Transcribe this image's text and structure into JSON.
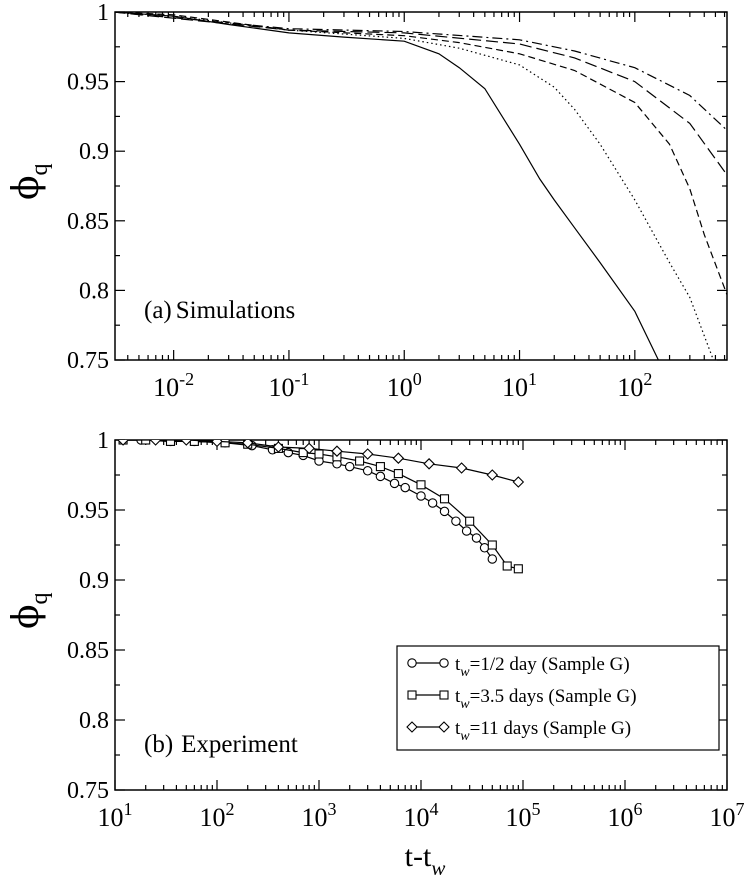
{
  "chart_data": [
    {
      "type": "line",
      "panel_label": "(a)",
      "title": "Simulations",
      "xscale": "log",
      "xlim": [
        0.0031,
        630
      ],
      "ylim": [
        0.75,
        1.0
      ],
      "ylabel_main": "ϕ",
      "ylabel_sub": "q",
      "y_ticks": [
        "0.75",
        "0.8",
        "0.85",
        "0.9",
        "0.95",
        "1"
      ],
      "x_ticks": [
        {
          "base": "10",
          "exp": "-2"
        },
        {
          "base": "10",
          "exp": "-1"
        },
        {
          "base": "10",
          "exp": "0"
        },
        {
          "base": "10",
          "exp": "1"
        },
        {
          "base": "10",
          "exp": "2"
        }
      ],
      "series": [
        {
          "name": "solid",
          "dash": "solid",
          "x": [
            0.003,
            0.01,
            0.03,
            0.1,
            0.3,
            1,
            2,
            3,
            5,
            10,
            15,
            20,
            30,
            50,
            100,
            160
          ],
          "y": [
            1.0,
            0.997,
            0.991,
            0.985,
            0.982,
            0.979,
            0.97,
            0.96,
            0.945,
            0.905,
            0.88,
            0.865,
            0.845,
            0.82,
            0.785,
            0.75
          ]
        },
        {
          "name": "dotted",
          "dash": "dotted",
          "x": [
            0.003,
            0.01,
            0.1,
            1,
            3,
            10,
            20,
            30,
            50,
            100,
            200,
            300,
            480
          ],
          "y": [
            1.0,
            0.997,
            0.987,
            0.981,
            0.974,
            0.962,
            0.946,
            0.93,
            0.905,
            0.865,
            0.82,
            0.795,
            0.75
          ]
        },
        {
          "name": "dashed",
          "dash": "dashed",
          "x": [
            0.003,
            0.01,
            0.1,
            1,
            3,
            10,
            30,
            100,
            200,
            300,
            400,
            630
          ],
          "y": [
            1.0,
            0.998,
            0.987,
            0.983,
            0.978,
            0.97,
            0.958,
            0.935,
            0.905,
            0.873,
            0.84,
            0.797
          ]
        },
        {
          "name": "long-dash",
          "dash": "longdash",
          "x": [
            0.003,
            0.1,
            1,
            10,
            30,
            100,
            300,
            630
          ],
          "y": [
            1.0,
            0.987,
            0.985,
            0.977,
            0.967,
            0.95,
            0.92,
            0.883
          ]
        },
        {
          "name": "dash-dot",
          "dash": "dashdot",
          "x": [
            0.003,
            0.1,
            1,
            10,
            30,
            100,
            300,
            630
          ],
          "y": [
            1.0,
            0.988,
            0.986,
            0.98,
            0.972,
            0.96,
            0.94,
            0.915
          ]
        }
      ]
    },
    {
      "type": "line",
      "panel_label": "(b)",
      "title": "Experiment",
      "xscale": "log",
      "xlim": [
        10,
        10000000
      ],
      "ylim": [
        0.75,
        1.0
      ],
      "xlabel_main": "t-t",
      "xlabel_sub": "w",
      "ylabel_main": "ϕ",
      "ylabel_sub": "q",
      "y_ticks": [
        "0.75",
        "0.8",
        "0.85",
        "0.9",
        "0.95",
        "1"
      ],
      "x_ticks": [
        {
          "base": "10",
          "exp": "1"
        },
        {
          "base": "10",
          "exp": "2"
        },
        {
          "base": "10",
          "exp": "3"
        },
        {
          "base": "10",
          "exp": "4"
        },
        {
          "base": "10",
          "exp": "5"
        },
        {
          "base": "10",
          "exp": "6"
        },
        {
          "base": "10",
          "exp": "7"
        }
      ],
      "series": [
        {
          "name": "tw=1/2 day",
          "marker": "circle",
          "legend_main": "t",
          "legend_sub": "w",
          "legend_rest": "=1/2 day  (Sample G)",
          "x": [
            12,
            18,
            35,
            60,
            120,
            220,
            350,
            500,
            700,
            1000,
            1500,
            2000,
            3000,
            4000,
            5500,
            7000,
            10000,
            13000,
            17000,
            22000,
            28000,
            35000,
            42000,
            50000
          ],
          "y": [
            1.0,
            1.0,
            0.999,
            0.999,
            0.998,
            0.996,
            0.993,
            0.991,
            0.989,
            0.985,
            0.983,
            0.981,
            0.978,
            0.974,
            0.969,
            0.966,
            0.96,
            0.955,
            0.949,
            0.942,
            0.935,
            0.93,
            0.923,
            0.915
          ]
        },
        {
          "name": "tw=3.5 days",
          "marker": "square",
          "legend_main": "t",
          "legend_sub": "w",
          "legend_rest": "=3.5 days (Sample G)",
          "x": [
            12,
            20,
            35,
            60,
            120,
            200,
            400,
            700,
            1000,
            1500,
            2500,
            4000,
            6000,
            10000,
            17000,
            30000,
            50000,
            70000,
            90000
          ],
          "y": [
            1.0,
            1.0,
            0.999,
            0.999,
            0.998,
            0.997,
            0.994,
            0.991,
            0.99,
            0.988,
            0.985,
            0.981,
            0.976,
            0.968,
            0.958,
            0.942,
            0.925,
            0.91,
            0.908
          ]
        },
        {
          "name": "tw=11 days",
          "marker": "diamond",
          "legend_main": "t",
          "legend_sub": "w",
          "legend_rest": "=11 days  (Sample G)",
          "x": [
            12,
            25,
            50,
            100,
            200,
            400,
            800,
            1500,
            3000,
            6000,
            12000,
            25000,
            50000,
            90000
          ],
          "y": [
            1.0,
            1.0,
            1.0,
            0.999,
            0.998,
            0.995,
            0.994,
            0.992,
            0.99,
            0.987,
            0.983,
            0.98,
            0.975,
            0.97
          ]
        }
      ]
    }
  ]
}
